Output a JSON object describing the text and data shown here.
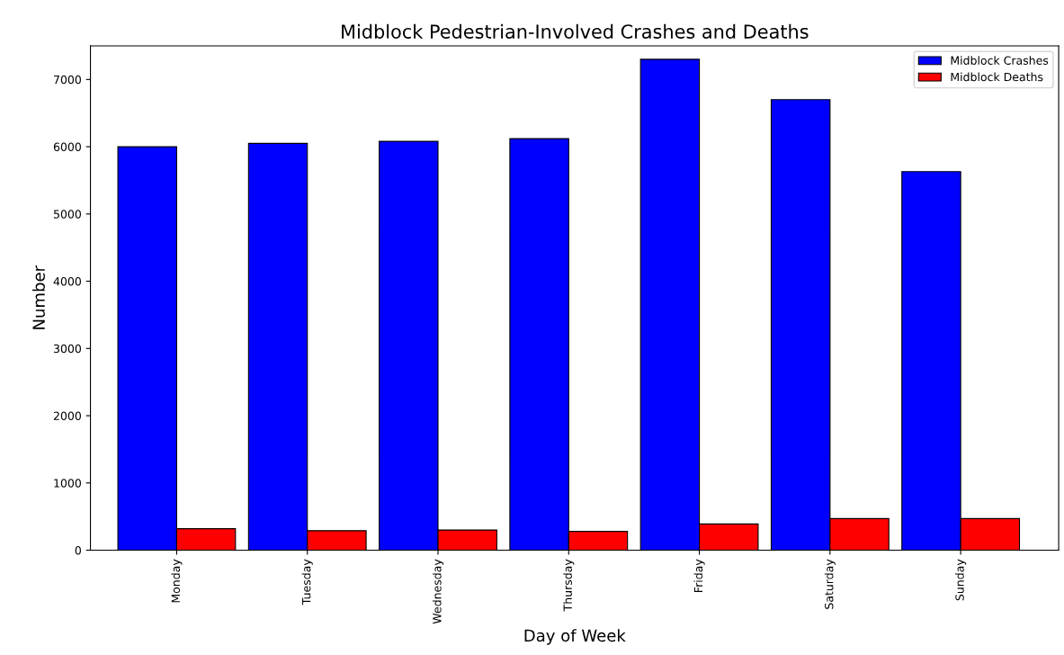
{
  "chart_data": {
    "type": "bar",
    "title": "Midblock Pedestrian-Involved Crashes and Deaths",
    "xlabel": "Day of Week",
    "ylabel": "Number",
    "categories": [
      "Monday",
      "Tuesday",
      "Wednesday",
      "Thursday",
      "Friday",
      "Saturday",
      "Sunday"
    ],
    "series": [
      {
        "name": "Midblock Crashes",
        "color": "#0000ff",
        "values": [
          6000,
          6050,
          6080,
          6120,
          7300,
          6700,
          5630
        ]
      },
      {
        "name": "Midblock Deaths",
        "color": "#ff0000",
        "values": [
          320,
          290,
          300,
          280,
          390,
          470,
          470
        ]
      }
    ],
    "ylim": [
      0,
      7500
    ],
    "yticks": [
      0,
      1000,
      2000,
      3000,
      4000,
      5000,
      6000,
      7000
    ],
    "grid": false,
    "legend": "top right"
  }
}
